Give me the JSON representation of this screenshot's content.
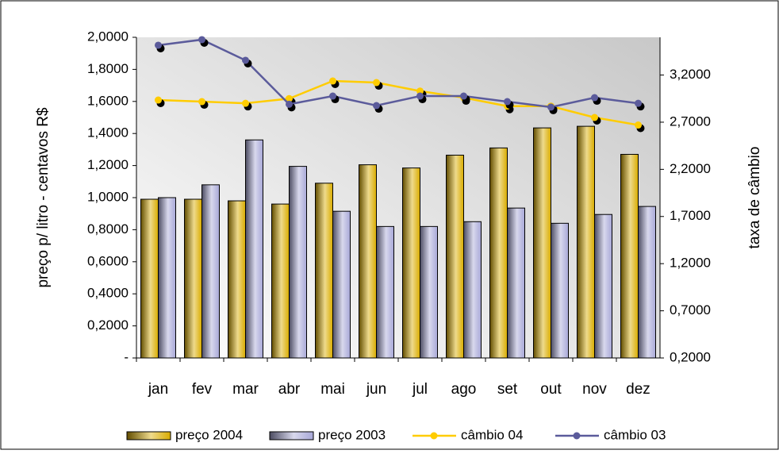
{
  "chart_data": {
    "type": "bar-line",
    "ylabel": "preço p/ litro - centavos R$",
    "y2label": "taxa de câmbio",
    "categories": [
      "jan",
      "fev",
      "mar",
      "abr",
      "mai",
      "jun",
      "jul",
      "ago",
      "set",
      "out",
      "nov",
      "dez"
    ],
    "series": [
      {
        "name": "preço 2004",
        "type": "bar",
        "color": "#d9ac00",
        "values": [
          0.99,
          0.99,
          0.98,
          0.96,
          1.09,
          1.205,
          1.185,
          1.265,
          1.31,
          1.435,
          1.445,
          1.27
        ]
      },
      {
        "name": "preço 2003",
        "type": "bar",
        "color": "#a8a8d8",
        "values": [
          1.0,
          1.08,
          1.36,
          1.195,
          0.915,
          0.82,
          0.82,
          0.85,
          0.935,
          0.84,
          0.895,
          0.945
        ]
      },
      {
        "name": "câmbio 04",
        "type": "line",
        "axis": "y2",
        "color": "#ffcc00",
        "values": [
          2.935,
          2.918,
          2.9,
          2.95,
          3.137,
          3.12,
          3.03,
          2.96,
          2.87,
          2.87,
          2.75,
          2.67
        ]
      },
      {
        "name": "câmbio 03",
        "type": "line",
        "axis": "y2",
        "color": "#5b5b9b",
        "values": [
          3.516,
          3.575,
          3.356,
          2.89,
          2.977,
          2.876,
          2.977,
          2.977,
          2.918,
          2.86,
          2.96,
          2.9
        ]
      }
    ],
    "ylim": [
      0,
      2
    ],
    "yticks": [
      {
        "value": 0,
        "label": "-"
      },
      {
        "value": 0.2,
        "label": "0,2000"
      },
      {
        "value": 0.4,
        "label": "0,4000"
      },
      {
        "value": 0.6,
        "label": "0,6000"
      },
      {
        "value": 0.8,
        "label": "0,8000"
      },
      {
        "value": 1.0,
        "label": "1,0000"
      },
      {
        "value": 1.2,
        "label": "1,2000"
      },
      {
        "value": 1.4,
        "label": "1,4000"
      },
      {
        "value": 1.6,
        "label": "1,6000"
      },
      {
        "value": 1.8,
        "label": "1,8000"
      },
      {
        "value": 2.0,
        "label": "2,0000"
      }
    ],
    "y2lim": [
      0.2,
      3.6
    ],
    "y2ticks": [
      {
        "value": 0.2,
        "label": "0,2000"
      },
      {
        "value": 0.7,
        "label": "0,7000"
      },
      {
        "value": 1.2,
        "label": "1,2000"
      },
      {
        "value": 1.7,
        "label": "1,7000"
      },
      {
        "value": 2.2,
        "label": "2,2000"
      },
      {
        "value": 2.7,
        "label": "2,7000"
      },
      {
        "value": 3.2,
        "label": "3,2000"
      }
    ],
    "legend": "bottom"
  }
}
